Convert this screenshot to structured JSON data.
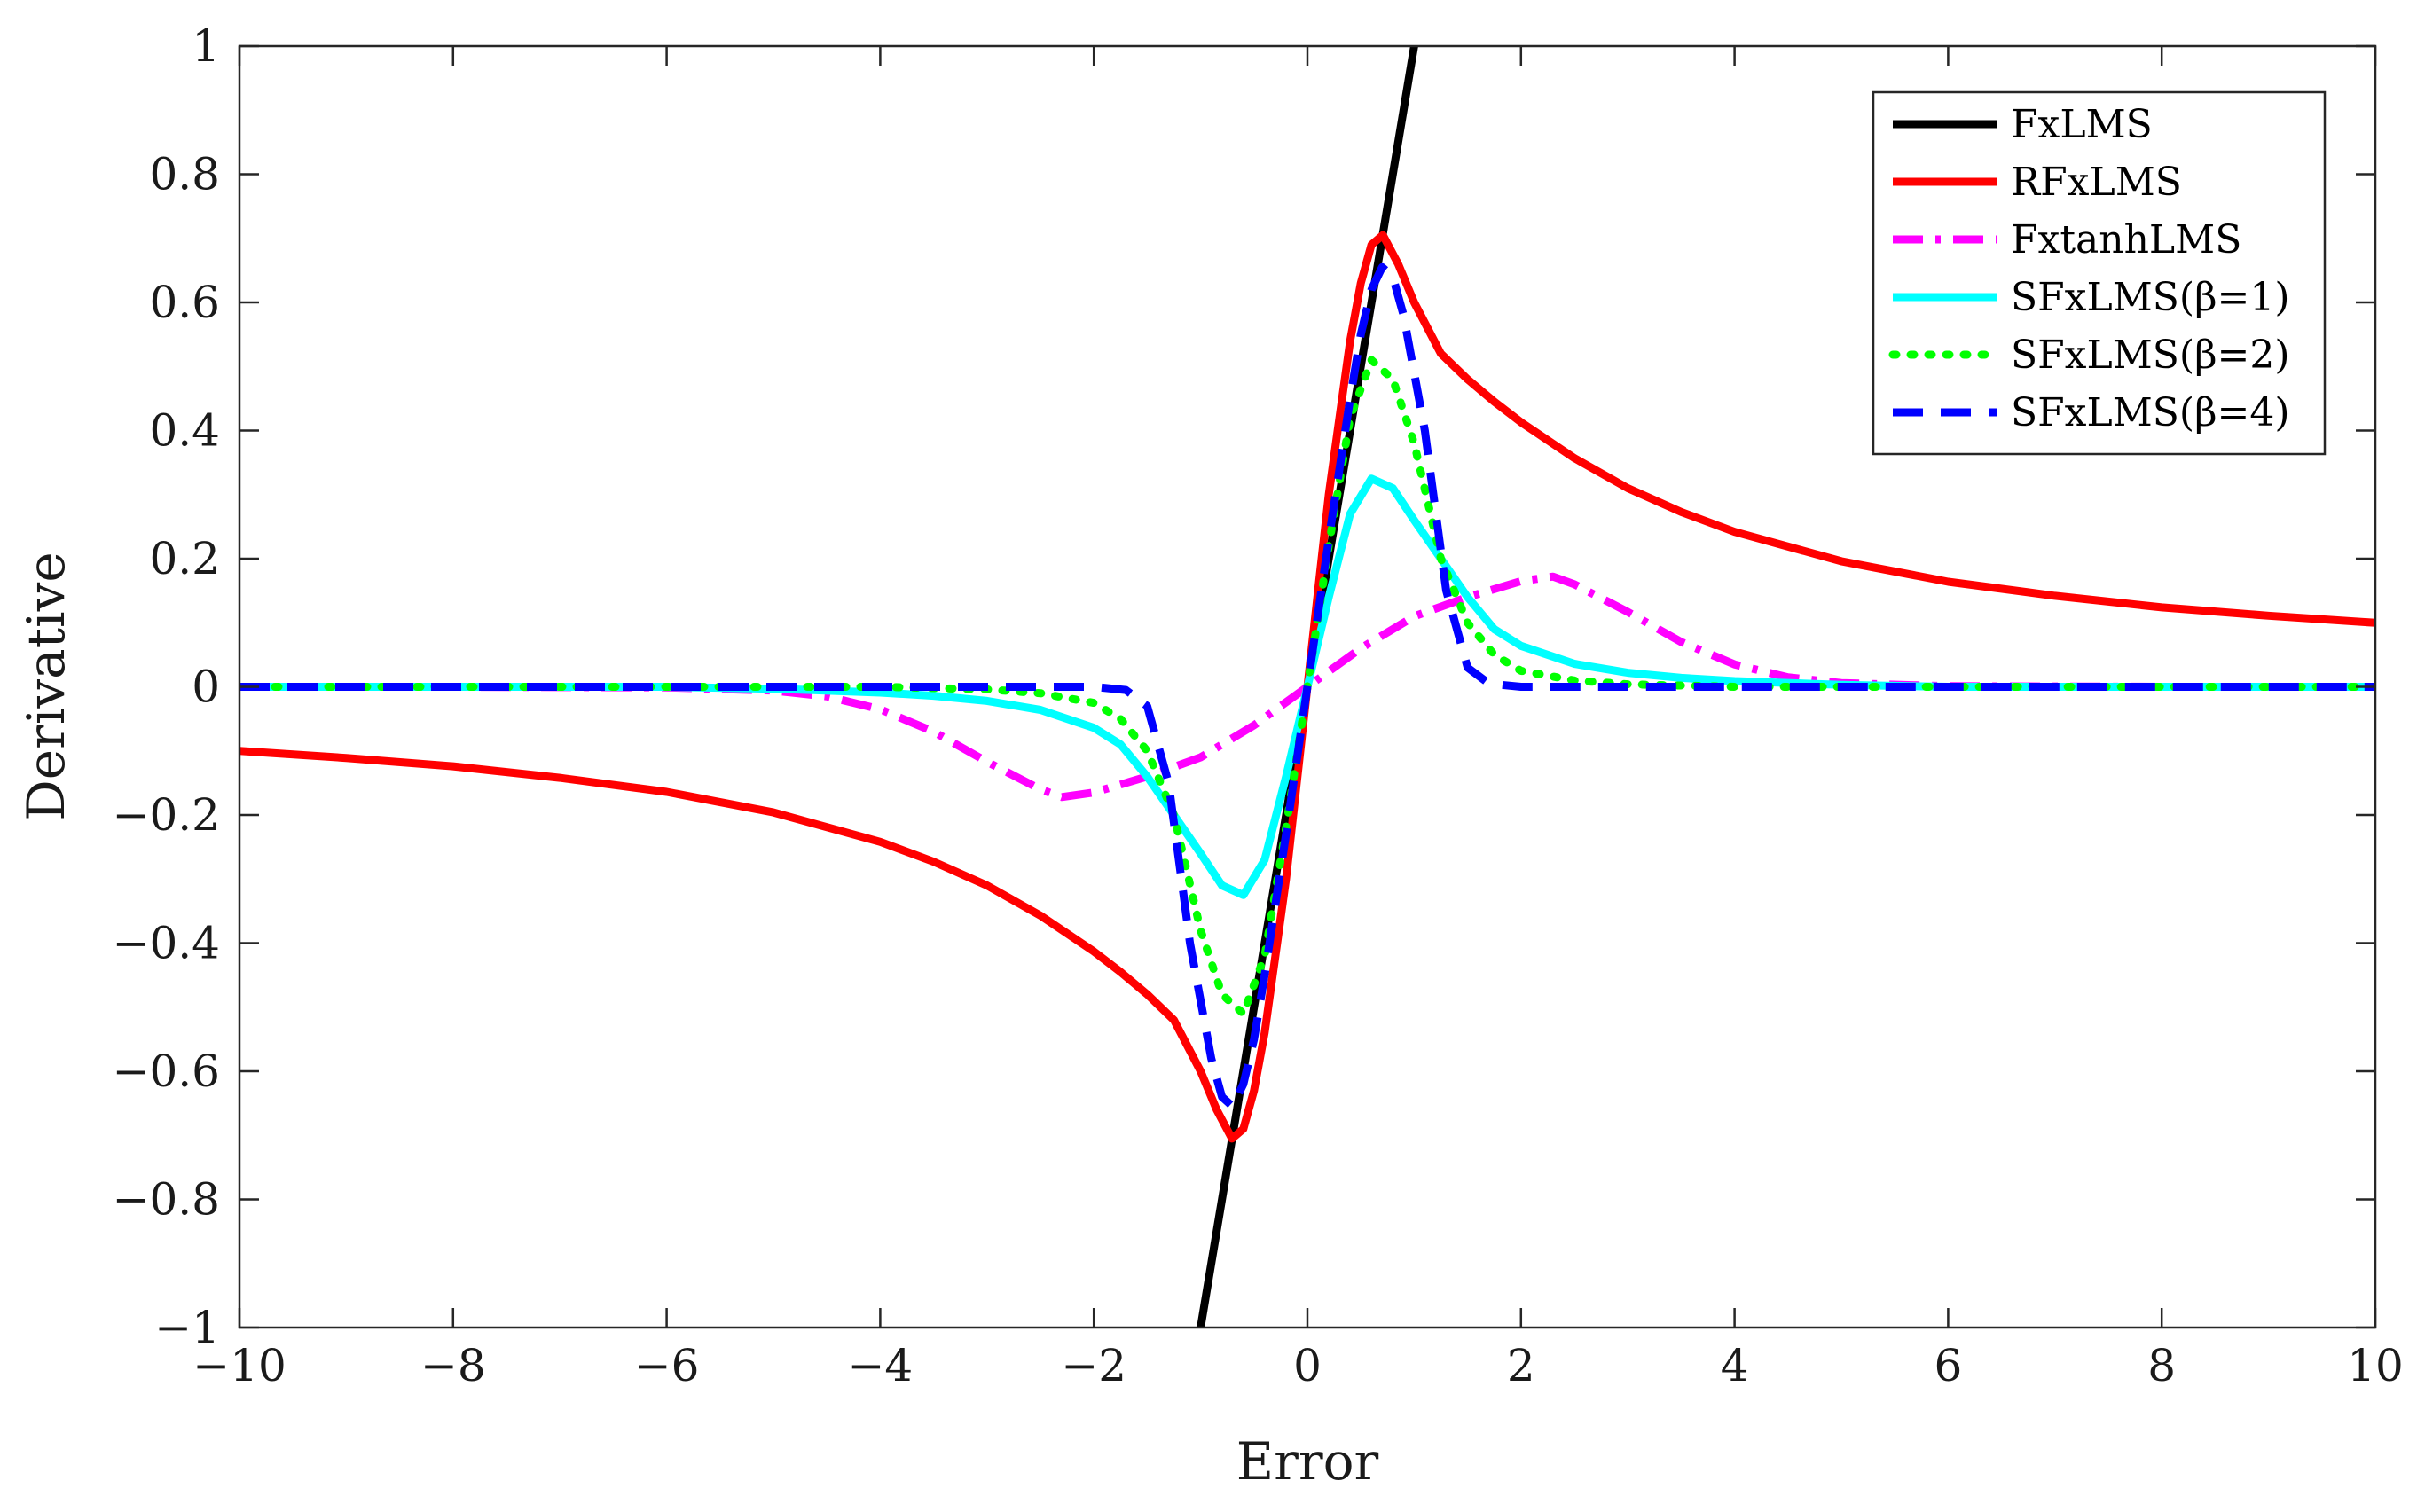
{
  "chart_data": {
    "type": "line",
    "title": "",
    "xlabel": "Error",
    "ylabel": "Derivative",
    "xlim": [
      -10,
      10
    ],
    "ylim": [
      -1,
      1
    ],
    "xticks": [
      "−10",
      "−8",
      "−6",
      "−4",
      "−2",
      "0",
      "2",
      "4",
      "6",
      "8",
      "10"
    ],
    "yticks": [
      "1",
      "0.8",
      "0.6",
      "0.4",
      "0.2",
      "0",
      "−0.2",
      "−0.4",
      "−0.6",
      "−0.8",
      "−1"
    ],
    "grid": false,
    "legend_position": "top-right",
    "series": [
      {
        "name": "FxLMS",
        "color": "#000000",
        "dash": "solid",
        "x": [
          -1.0,
          1.0
        ],
        "y": [
          -1.0,
          1.0
        ]
      },
      {
        "name": "RFxLMS",
        "color": "#ff0000",
        "dash": "solid",
        "x": [
          -10,
          -9,
          -8,
          -7,
          -6,
          -5,
          -4,
          -3.5,
          -3,
          -2.5,
          -2,
          -1.75,
          -1.5,
          -1.25,
          -1,
          -0.85,
          -0.707,
          -0.6,
          -0.5,
          -0.4,
          -0.3,
          -0.2,
          -0.1,
          0,
          0.1,
          0.2,
          0.3,
          0.4,
          0.5,
          0.6,
          0.707,
          0.85,
          1,
          1.25,
          1.5,
          1.75,
          2,
          2.5,
          3,
          3.5,
          4,
          5,
          6,
          7,
          8,
          9,
          10
        ],
        "y": [
          -0.1,
          -0.111,
          -0.124,
          -0.142,
          -0.164,
          -0.196,
          -0.242,
          -0.273,
          -0.31,
          -0.357,
          -0.413,
          -0.445,
          -0.48,
          -0.52,
          -0.6,
          -0.66,
          -0.705,
          -0.69,
          -0.63,
          -0.54,
          -0.42,
          -0.3,
          -0.15,
          0,
          0.15,
          0.3,
          0.42,
          0.54,
          0.63,
          0.69,
          0.705,
          0.66,
          0.6,
          0.52,
          0.48,
          0.445,
          0.413,
          0.357,
          0.31,
          0.273,
          0.242,
          0.196,
          0.164,
          0.142,
          0.124,
          0.111,
          0.1
        ]
      },
      {
        "name": "FxtanhLMS",
        "color": "#ff00ff",
        "dash": "dashdot",
        "x": [
          -10,
          -8,
          -6,
          -5,
          -4.5,
          -4,
          -3.5,
          -3,
          -2.5,
          -2.3,
          -2,
          -1.5,
          -1,
          -0.5,
          0,
          0.5,
          1,
          1.5,
          2,
          2.3,
          2.5,
          3,
          3.5,
          4,
          4.5,
          5,
          6,
          8,
          10
        ],
        "y": [
          0,
          0,
          -0.001,
          -0.006,
          -0.015,
          -0.035,
          -0.07,
          -0.117,
          -0.16,
          -0.172,
          -0.165,
          -0.14,
          -0.11,
          -0.06,
          0,
          0.06,
          0.11,
          0.14,
          0.165,
          0.172,
          0.16,
          0.117,
          0.07,
          0.035,
          0.015,
          0.006,
          0.001,
          0,
          0
        ]
      },
      {
        "name": "SFxLMS(β=1)",
        "color": "#00ffff",
        "dash": "solid",
        "x": [
          -10,
          -8,
          -6,
          -5,
          -4,
          -3.5,
          -3,
          -2.5,
          -2,
          -1.75,
          -1.5,
          -1.25,
          -1,
          -0.8,
          -0.6,
          -0.4,
          -0.2,
          0,
          0.2,
          0.4,
          0.6,
          0.8,
          1,
          1.25,
          1.5,
          1.75,
          2,
          2.5,
          3,
          3.5,
          4,
          5,
          6,
          8,
          10
        ],
        "y": [
          0,
          0,
          0,
          -0.003,
          -0.009,
          -0.014,
          -0.022,
          -0.036,
          -0.064,
          -0.09,
          -0.14,
          -0.2,
          -0.26,
          -0.31,
          -0.325,
          -0.27,
          -0.14,
          0,
          0.14,
          0.27,
          0.325,
          0.31,
          0.26,
          0.2,
          0.14,
          0.09,
          0.064,
          0.036,
          0.022,
          0.014,
          0.009,
          0.003,
          0,
          0,
          0
        ]
      },
      {
        "name": "SFxLMS(β=2)",
        "color": "#00ff00",
        "dash": "dotted",
        "x": [
          -10,
          -6,
          -4,
          -3,
          -2.5,
          -2,
          -1.75,
          -1.5,
          -1.25,
          -1,
          -0.8,
          -0.6,
          -0.4,
          -0.2,
          0,
          0.2,
          0.4,
          0.6,
          0.8,
          1,
          1.25,
          1.5,
          1.75,
          2,
          2.5,
          3,
          4,
          6,
          10
        ],
        "y": [
          0,
          0,
          0,
          -0.004,
          -0.01,
          -0.025,
          -0.05,
          -0.1,
          -0.2,
          -0.38,
          -0.48,
          -0.51,
          -0.42,
          -0.22,
          0,
          0.22,
          0.42,
          0.51,
          0.48,
          0.38,
          0.2,
          0.1,
          0.05,
          0.025,
          0.01,
          0.004,
          0,
          0,
          0
        ]
      },
      {
        "name": "SFxLMS(β=4)",
        "color": "#0000ff",
        "dash": "dashed",
        "x": [
          -10,
          -4,
          -2,
          -1.7,
          -1.5,
          -1.3,
          -1.1,
          -0.9,
          -0.8,
          -0.7,
          -0.6,
          -0.5,
          -0.4,
          -0.2,
          0,
          0.2,
          0.4,
          0.5,
          0.6,
          0.7,
          0.8,
          0.9,
          1.1,
          1.3,
          1.5,
          1.7,
          2,
          4,
          10
        ],
        "y": [
          0,
          0,
          0,
          -0.005,
          -0.03,
          -0.15,
          -0.4,
          -0.58,
          -0.64,
          -0.655,
          -0.62,
          -0.55,
          -0.45,
          -0.23,
          0,
          0.23,
          0.45,
          0.55,
          0.62,
          0.655,
          0.64,
          0.58,
          0.4,
          0.15,
          0.03,
          0.005,
          0,
          0,
          0
        ]
      }
    ]
  }
}
